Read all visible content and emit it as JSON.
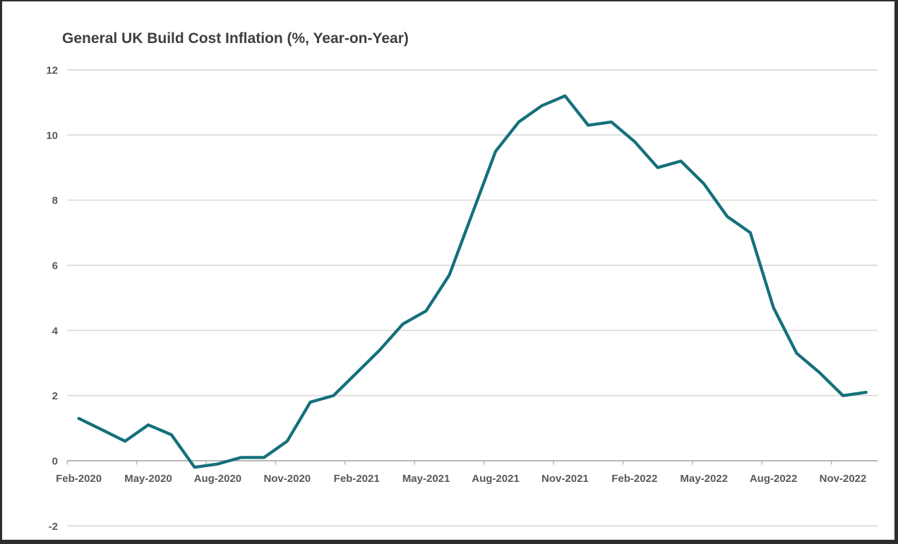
{
  "chart_data": {
    "type": "line",
    "title": "General UK Build Cost Inflation (%, Year-on-Year)",
    "xlabel": "",
    "ylabel": "",
    "x": [
      "Feb-2020",
      "Mar-2020",
      "Apr-2020",
      "May-2020",
      "Jun-2020",
      "Jul-2020",
      "Aug-2020",
      "Sep-2020",
      "Oct-2020",
      "Nov-2020",
      "Dec-2020",
      "Jan-2021",
      "Feb-2021",
      "Mar-2021",
      "Apr-2021",
      "May-2021",
      "Jun-2021",
      "Jul-2021",
      "Aug-2021",
      "Sep-2021",
      "Oct-2021",
      "Nov-2021",
      "Dec-2021",
      "Jan-2022",
      "Feb-2022",
      "Mar-2022",
      "Apr-2022",
      "May-2022",
      "Jun-2022",
      "Jul-2022",
      "Aug-2022",
      "Sep-2022",
      "Oct-2022",
      "Nov-2022",
      "Dec-2022"
    ],
    "values": [
      1.3,
      0.95,
      0.6,
      1.1,
      0.8,
      -0.2,
      -0.1,
      0.1,
      0.1,
      0.6,
      1.8,
      2.0,
      2.7,
      3.4,
      4.2,
      4.6,
      5.7,
      7.6,
      9.5,
      10.4,
      10.9,
      11.2,
      10.3,
      10.4,
      9.8,
      9.0,
      9.2,
      8.5,
      7.5,
      7.0,
      4.7,
      3.3,
      2.7,
      2.0,
      2.1
    ],
    "x_tick_labels": [
      "Feb-2020",
      "May-2020",
      "Aug-2020",
      "Nov-2020",
      "Feb-2021",
      "May-2021",
      "Aug-2021",
      "Nov-2021",
      "Feb-2022",
      "May-2022",
      "Aug-2022",
      "Nov-2022"
    ],
    "x_tick_every_n_months": 3,
    "y_ticks": [
      12,
      10,
      8,
      6,
      4,
      2,
      0,
      -2
    ],
    "ylim": [
      -2,
      12
    ],
    "grid": true,
    "legend": "none",
    "line_color": "#14707b",
    "gridline_color": "#d9d9d9",
    "axis_color": "#b7b7b7",
    "tick_label_color": "#595959",
    "title_color": "#3f3f3f"
  }
}
